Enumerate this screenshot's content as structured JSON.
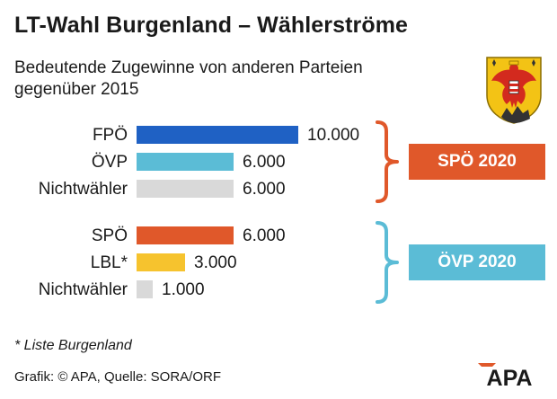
{
  "header": {
    "title": "LT-Wahl Burgenland – Wählerströme",
    "subtitle_line1": "Bedeutende Zugewinne von anderen Parteien",
    "subtitle_line2": "gegenüber 2015"
  },
  "chart_data": {
    "type": "bar",
    "orientation": "horizontal",
    "xlim": [
      0,
      10000
    ],
    "groups": [
      {
        "target": "SPÖ 2020",
        "target_color": "#e0582a",
        "bracket_color": "#e0582a",
        "bars": [
          {
            "label": "FPÖ",
            "value": 10000,
            "value_label": "10.000",
            "color": "#1f61c4"
          },
          {
            "label": "ÖVP",
            "value": 6000,
            "value_label": "6.000",
            "color": "#5bbcd6"
          },
          {
            "label": "Nichtwähler",
            "value": 6000,
            "value_label": "6.000",
            "color": "#d9d9d9"
          }
        ]
      },
      {
        "target": "ÖVP 2020",
        "target_color": "#5bbcd6",
        "bracket_color": "#5bbcd6",
        "bars": [
          {
            "label": "SPÖ",
            "value": 6000,
            "value_label": "6.000",
            "color": "#e0582a"
          },
          {
            "label": "LBL*",
            "value": 3000,
            "value_label": "3.000",
            "color": "#f6c32e"
          },
          {
            "label": "Nichtwähler",
            "value": 1000,
            "value_label": "1.000",
            "color": "#d9d9d9"
          }
        ]
      }
    ]
  },
  "footnote": "* Liste Burgenland",
  "source": "Grafik: © APA, Quelle: SORA/ORF",
  "logo": {
    "text": "APA",
    "color": "#e0582a"
  },
  "icons": {
    "coat": "burgenland-coat-of-arms-icon"
  }
}
